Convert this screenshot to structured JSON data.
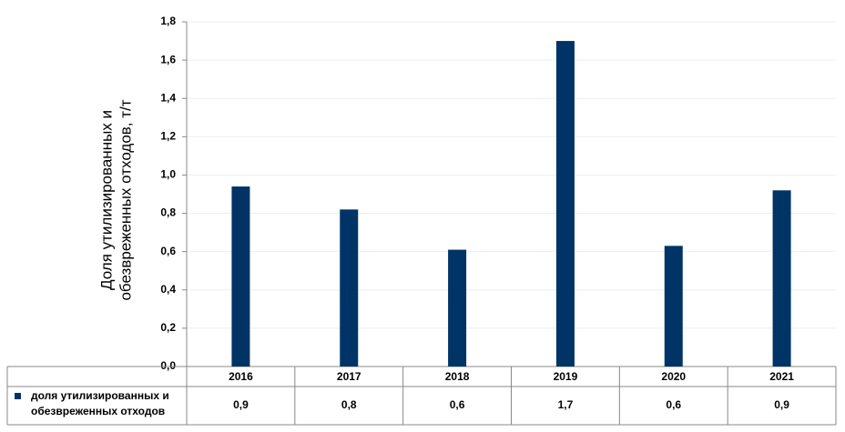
{
  "chart_data": {
    "type": "bar",
    "ylabel": [
      "Доля утилизированных и",
      "обезвреженных отходов, т/т"
    ],
    "categories": [
      "2016",
      "2017",
      "2018",
      "2019",
      "2020",
      "2021"
    ],
    "series": [
      {
        "name": "доля утилизированных и обезвреженных отходов",
        "color": "#003366",
        "values": [
          0.94,
          0.82,
          0.61,
          1.7,
          0.63,
          0.92
        ],
        "value_labels": [
          "0,9",
          "0,8",
          "0,6",
          "1,7",
          "0,6",
          "0,9"
        ]
      }
    ],
    "ylim": [
      0,
      1.8
    ],
    "yticks": [
      {
        "value": 0,
        "label": "0,0"
      },
      {
        "value": 0.2,
        "label": "0,2"
      },
      {
        "value": 0.4,
        "label": "0,4"
      },
      {
        "value": 0.6,
        "label": "0,6"
      },
      {
        "value": 0.8,
        "label": "0,8"
      },
      {
        "value": 1.0,
        "label": "1,0"
      },
      {
        "value": 1.2,
        "label": "1,2"
      },
      {
        "value": 1.4,
        "label": "1,4"
      },
      {
        "value": 1.6,
        "label": "1,6"
      },
      {
        "value": 1.8,
        "label": "1,8"
      }
    ],
    "grid": true
  }
}
